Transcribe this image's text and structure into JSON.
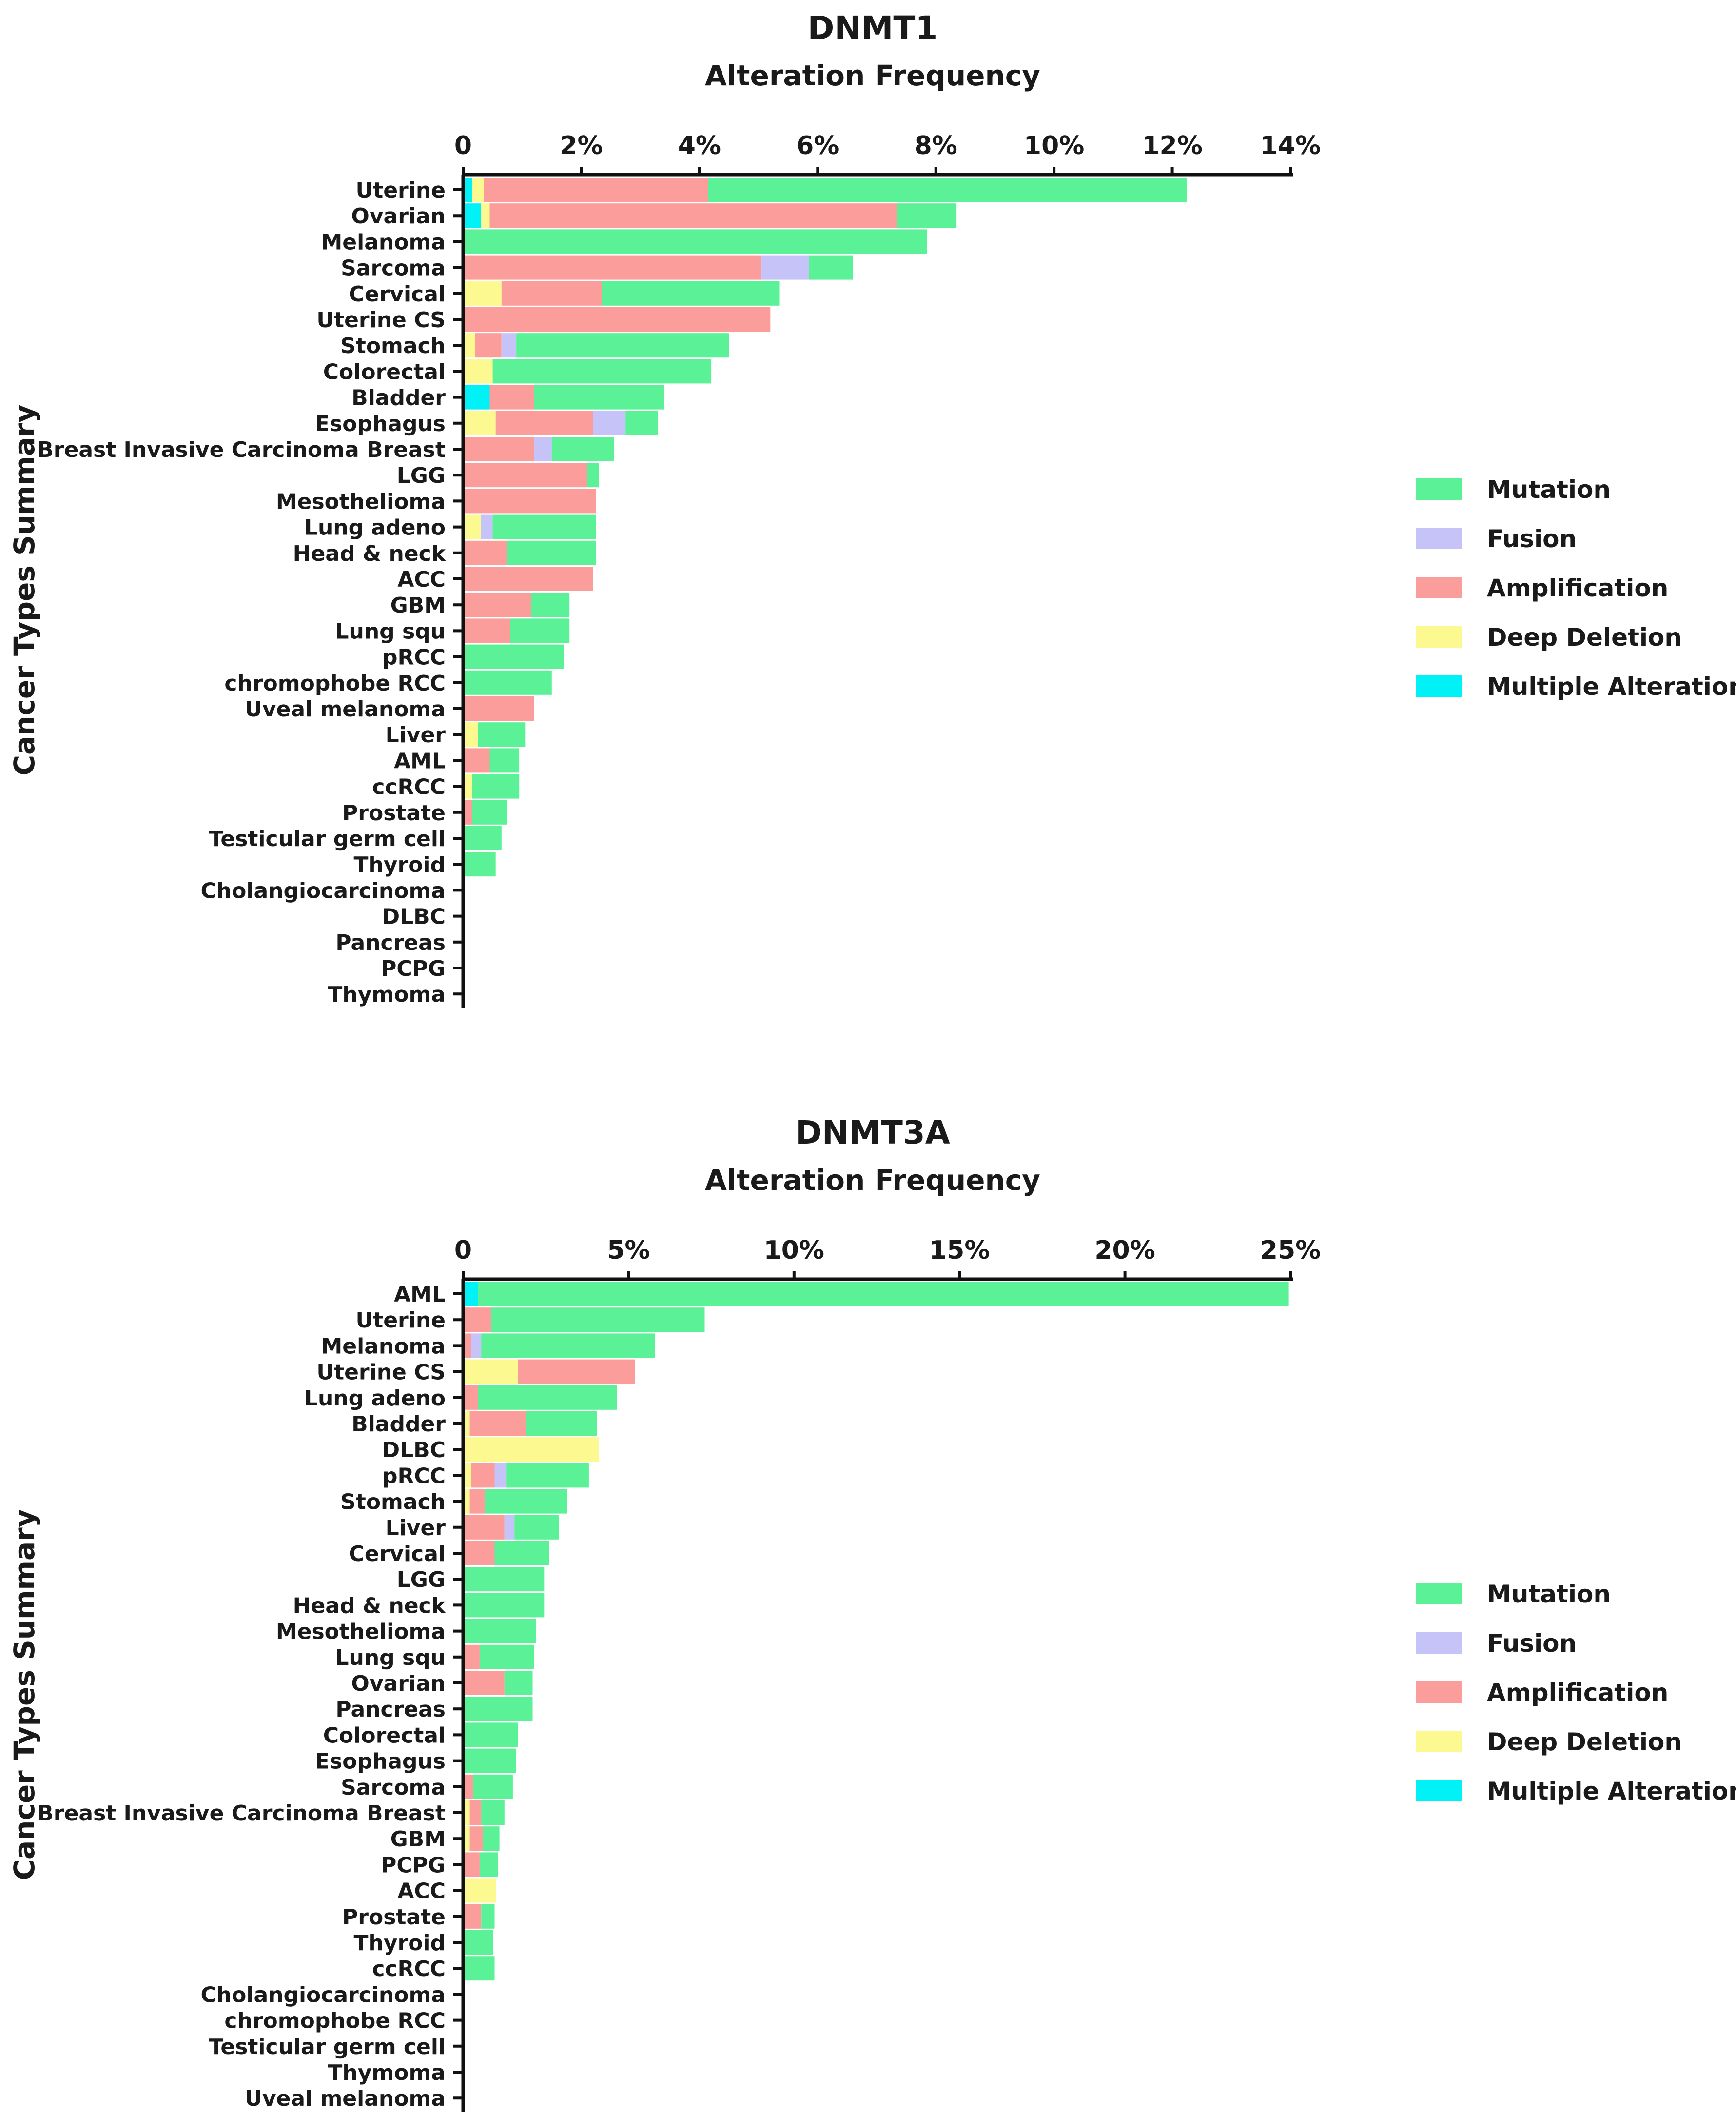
{
  "legend": {
    "items": [
      {
        "key": "mutation",
        "label": "Mutation",
        "color": "#5BF197"
      },
      {
        "key": "fusion",
        "label": "Fusion",
        "color": "#C5C3F7"
      },
      {
        "key": "amplification",
        "label": "Amplification",
        "color": "#FB9D9A"
      },
      {
        "key": "deep_deletion",
        "label": "Deep Deletion",
        "color": "#FBF98F"
      },
      {
        "key": "multiple",
        "label": "Multiple Alterations",
        "color": "#00F1F6"
      }
    ]
  },
  "chart_data": [
    {
      "type": "bar",
      "orientation": "horizontal",
      "stacked": true,
      "title": "DNMT1",
      "subtitle": "Alteration Frequency",
      "ylabel": "Cancer Types Summary",
      "xlim": [
        0,
        14
      ],
      "ticks": [
        0,
        2,
        4,
        6,
        8,
        10,
        12,
        14
      ],
      "tick_labels": [
        "0",
        "2%",
        "4%",
        "6%",
        "8%",
        "10%",
        "12%",
        "14%"
      ],
      "stack_order": [
        "multiple",
        "deep_deletion",
        "amplification",
        "fusion",
        "mutation"
      ],
      "categories": [
        "Uterine",
        "Ovarian",
        "Melanoma",
        "Sarcoma",
        "Cervical",
        "Uterine CS",
        "Stomach",
        "Colorectal",
        "Bladder",
        "Esophagus",
        "Breast Invasive Carcinoma Breast",
        "LGG",
        "Mesothelioma",
        "Lung adeno",
        "Head & neck",
        "ACC",
        "GBM",
        "Lung squ",
        "pRCC",
        "chromophobe RCC",
        "Uveal melanoma",
        "Liver",
        "AML",
        "ccRCC",
        "Prostate",
        "Testicular germ cell",
        "Thyroid",
        "Cholangiocarcinoma",
        "DLBC",
        "Pancreas",
        "PCPG",
        "Thymoma"
      ],
      "series": [
        {
          "name": "Multiple Alterations",
          "key": "multiple",
          "values": [
            0.15,
            0.3,
            0,
            0,
            0,
            0,
            0,
            0,
            0.45,
            0,
            0,
            0,
            0,
            0,
            0,
            0,
            0,
            0,
            0,
            0,
            0,
            0,
            0,
            0,
            0,
            0,
            0,
            0,
            0,
            0,
            0,
            0
          ]
        },
        {
          "name": "Deep Deletion",
          "key": "deep_deletion",
          "values": [
            0.2,
            0.15,
            0,
            0,
            0.65,
            0,
            0.2,
            0.5,
            0,
            0.55,
            0,
            0,
            0,
            0.3,
            0,
            0,
            0,
            0,
            0,
            0,
            0,
            0.25,
            0,
            0.15,
            0,
            0,
            0,
            0,
            0,
            0,
            0,
            0
          ]
        },
        {
          "name": "Amplification",
          "key": "amplification",
          "values": [
            3.8,
            6.9,
            0,
            5.05,
            1.7,
            5.2,
            0.45,
            0,
            0.75,
            1.65,
            1.2,
            2.1,
            2.25,
            0,
            0.75,
            2.2,
            1.15,
            0.8,
            0,
            0,
            1.2,
            0,
            0.45,
            0,
            0.15,
            0,
            0,
            0,
            0,
            0,
            0,
            0
          ]
        },
        {
          "name": "Fusion",
          "key": "fusion",
          "values": [
            0,
            0,
            0,
            0.8,
            0,
            0,
            0.25,
            0,
            0,
            0.55,
            0.3,
            0,
            0,
            0.2,
            0,
            0,
            0,
            0,
            0,
            0,
            0,
            0,
            0,
            0,
            0,
            0,
            0,
            0,
            0,
            0,
            0,
            0
          ]
        },
        {
          "name": "Mutation",
          "key": "mutation",
          "values": [
            8.1,
            1.0,
            7.85,
            0.75,
            3.0,
            0,
            3.6,
            3.7,
            2.2,
            0.55,
            1.05,
            0.2,
            0,
            1.75,
            1.5,
            0,
            0.65,
            1.0,
            1.7,
            1.5,
            0,
            0.8,
            0.5,
            0.8,
            0.6,
            0.65,
            0.55,
            0,
            0,
            0,
            0,
            0
          ]
        }
      ]
    },
    {
      "type": "bar",
      "orientation": "horizontal",
      "stacked": true,
      "title": "DNMT3A",
      "subtitle": "Alteration Frequency",
      "ylabel": "Cancer Types Summary",
      "xlim": [
        0,
        25
      ],
      "ticks": [
        0,
        5,
        10,
        15,
        20,
        25
      ],
      "tick_labels": [
        "0",
        "5%",
        "10%",
        "15%",
        "20%",
        "25%"
      ],
      "stack_order": [
        "multiple",
        "deep_deletion",
        "amplification",
        "fusion",
        "mutation"
      ],
      "categories": [
        "AML",
        "Uterine",
        "Melanoma",
        "Uterine CS",
        "Lung adeno",
        "Bladder",
        "DLBC",
        "pRCC",
        "Stomach",
        "Liver",
        "Cervical",
        "LGG",
        "Head & neck",
        "Mesothelioma",
        "Lung squ",
        "Ovarian",
        "Pancreas",
        "Colorectal",
        "Esophagus",
        "Sarcoma",
        "Breast Invasive Carcinoma Breast",
        "GBM",
        "PCPG",
        "ACC",
        "Prostate",
        "Thyroid",
        "ccRCC",
        "Cholangiocarcinoma",
        "chromophobe RCC",
        "Testicular germ cell",
        "Thymoma",
        "Uveal melanoma"
      ],
      "series": [
        {
          "name": "Multiple Alterations",
          "key": "multiple",
          "values": [
            0.45,
            0,
            0,
            0,
            0,
            0,
            0,
            0,
            0,
            0,
            0,
            0,
            0,
            0,
            0,
            0,
            0,
            0,
            0,
            0,
            0,
            0,
            0,
            0,
            0,
            0,
            0,
            0,
            0,
            0,
            0,
            0
          ]
        },
        {
          "name": "Deep Deletion",
          "key": "deep_deletion",
          "values": [
            0,
            0,
            0,
            1.65,
            0,
            0.2,
            4.1,
            0.25,
            0.2,
            0,
            0,
            0,
            0,
            0,
            0,
            0,
            0,
            0,
            0,
            0,
            0.2,
            0.2,
            0,
            1.0,
            0,
            0,
            0,
            0,
            0,
            0,
            0,
            0
          ]
        },
        {
          "name": "Amplification",
          "key": "amplification",
          "values": [
            0,
            0.85,
            0.25,
            3.55,
            0.45,
            1.7,
            0,
            0.7,
            0.45,
            1.25,
            0.95,
            0,
            0,
            0,
            0.5,
            1.25,
            0,
            0,
            0,
            0.3,
            0.35,
            0.4,
            0.5,
            0,
            0.55,
            0,
            0,
            0,
            0,
            0,
            0,
            0
          ]
        },
        {
          "name": "Fusion",
          "key": "fusion",
          "values": [
            0,
            0,
            0.3,
            0,
            0,
            0,
            0,
            0.35,
            0,
            0.3,
            0,
            0,
            0,
            0,
            0,
            0,
            0,
            0,
            0,
            0,
            0,
            0,
            0,
            0,
            0,
            0,
            0,
            0,
            0,
            0,
            0,
            0
          ]
        },
        {
          "name": "Mutation",
          "key": "mutation",
          "values": [
            24.5,
            6.45,
            5.25,
            0,
            4.2,
            2.15,
            0,
            2.5,
            2.5,
            1.35,
            1.65,
            2.45,
            2.45,
            2.2,
            1.65,
            0.85,
            2.1,
            1.65,
            1.6,
            1.2,
            0.7,
            0.5,
            0.55,
            0,
            0.4,
            0.9,
            0.95,
            0,
            0,
            0,
            0,
            0
          ]
        }
      ]
    }
  ]
}
